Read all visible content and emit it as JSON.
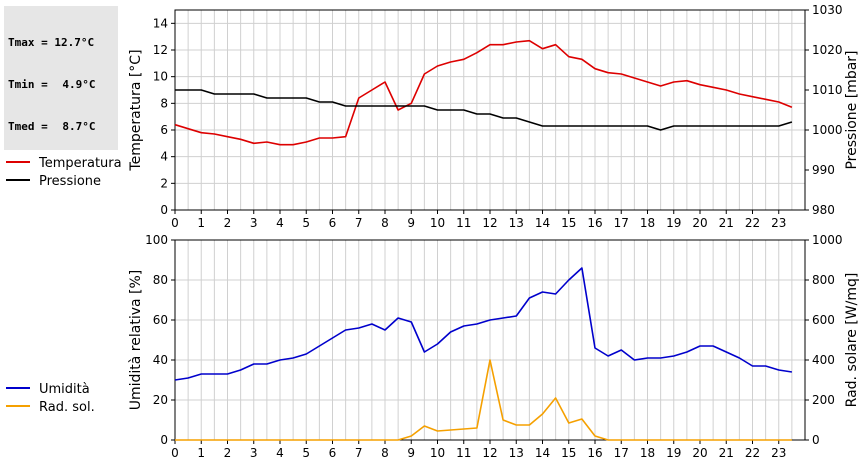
{
  "stats": [
    {
      "label": "Tmax =",
      "value": "12.7°C"
    },
    {
      "label": "Tmin =",
      "value": "4.9°C"
    },
    {
      "label": "Tmed =",
      "value": "8.7°C"
    }
  ],
  "colors": {
    "temperature": "#dd0000",
    "pressure": "#000000",
    "humidity": "#0000cc",
    "solar": "#f5a000",
    "grid": "#d0d0d0"
  },
  "chart_data": [
    {
      "type": "line",
      "x_ticks": [
        "0",
        "1",
        "2",
        "3",
        "4",
        "5",
        "6",
        "7",
        "8",
        "9",
        "10",
        "11",
        "12",
        "13",
        "14",
        "15",
        "16",
        "17",
        "18",
        "19",
        "20",
        "21",
        "22",
        "23"
      ],
      "xlim": [
        0,
        24
      ],
      "ylabel": "Temperatura [°C]",
      "ylim": [
        0,
        15
      ],
      "y_ticks": [
        "0",
        "2",
        "4",
        "6",
        "8",
        "10",
        "12",
        "14"
      ],
      "ylabel_right": "Pressione [mbar]",
      "ylim_right": [
        980,
        1030
      ],
      "y_ticks_right": [
        "980",
        "990",
        "1000",
        "1010",
        "1020",
        "1030"
      ],
      "grid": true,
      "legend_position": "left",
      "series": [
        {
          "name": "Temperatura",
          "axis": "left",
          "color": "#dd0000",
          "x": [
            0,
            0.5,
            1,
            1.5,
            2,
            2.5,
            3,
            3.5,
            4,
            4.5,
            5,
            5.5,
            6,
            6.5,
            7,
            7.5,
            8,
            8.5,
            9,
            9.5,
            10,
            10.5,
            11,
            11.5,
            12,
            12.5,
            13,
            13.5,
            14,
            14.5,
            15,
            15.5,
            16,
            16.5,
            17,
            17.5,
            18,
            18.5,
            19,
            19.5,
            20,
            20.5,
            21,
            21.5,
            22,
            22.5,
            23,
            23.5
          ],
          "y": [
            6.4,
            6.1,
            5.8,
            5.7,
            5.5,
            5.3,
            5.0,
            5.1,
            4.9,
            4.9,
            5.1,
            5.4,
            5.4,
            5.5,
            8.4,
            9.0,
            9.6,
            7.5,
            8.0,
            10.2,
            10.8,
            11.1,
            11.3,
            11.8,
            12.4,
            12.4,
            12.6,
            12.7,
            12.1,
            12.4,
            11.5,
            11.3,
            10.6,
            10.3,
            10.2,
            9.9,
            9.6,
            9.3,
            9.6,
            9.7,
            9.4,
            9.2,
            9.0,
            8.7,
            8.5,
            8.3,
            8.1,
            7.7
          ]
        },
        {
          "name": "Pressione",
          "axis": "right",
          "color": "#000000",
          "x": [
            0,
            1,
            1.5,
            2,
            3,
            3.5,
            4,
            5,
            5.5,
            6,
            6.5,
            7,
            8,
            9,
            9.5,
            10,
            11,
            11.5,
            12,
            12.5,
            13,
            13.5,
            14,
            15,
            16,
            17,
            18,
            18.5,
            19,
            20,
            21,
            22,
            23,
            23.5
          ],
          "y": [
            1010,
            1010,
            1009,
            1009,
            1009,
            1008,
            1008,
            1008,
            1007,
            1007,
            1006,
            1006,
            1006,
            1006,
            1006,
            1005,
            1005,
            1004,
            1004,
            1003,
            1003,
            1002,
            1001,
            1001,
            1001,
            1001,
            1001,
            1000,
            1001,
            1001,
            1001,
            1001,
            1001,
            1002
          ]
        }
      ]
    },
    {
      "type": "line",
      "x_ticks": [
        "0",
        "1",
        "2",
        "3",
        "4",
        "5",
        "6",
        "7",
        "8",
        "9",
        "10",
        "11",
        "12",
        "13",
        "14",
        "15",
        "16",
        "17",
        "18",
        "19",
        "20",
        "21",
        "22",
        "23"
      ],
      "xlim": [
        0,
        24
      ],
      "ylabel": "Umidità relativa [%]",
      "ylim": [
        0,
        100
      ],
      "y_ticks": [
        "0",
        "20",
        "40",
        "60",
        "80",
        "100"
      ],
      "ylabel_right": "Rad. solare [W/mq]",
      "ylim_right": [
        0,
        1000
      ],
      "y_ticks_right": [
        "0",
        "200",
        "400",
        "600",
        "800",
        "1000"
      ],
      "grid": true,
      "legend_position": "left",
      "series": [
        {
          "name": "Umidità",
          "axis": "left",
          "color": "#0000cc",
          "x": [
            0,
            0.5,
            1,
            1.5,
            2,
            2.5,
            3,
            3.5,
            4,
            4.5,
            5,
            5.5,
            6,
            6.5,
            7,
            7.5,
            8,
            8.5,
            9,
            9.5,
            10,
            10.5,
            11,
            11.5,
            12,
            12.5,
            13,
            13.5,
            14,
            14.5,
            15,
            15.5,
            16,
            16.5,
            17,
            17.5,
            18,
            18.5,
            19,
            19.5,
            20,
            20.5,
            21,
            21.5,
            22,
            22.5,
            23,
            23.5
          ],
          "y": [
            30,
            31,
            33,
            33,
            33,
            35,
            38,
            38,
            40,
            41,
            43,
            47,
            51,
            55,
            56,
            58,
            55,
            61,
            59,
            44,
            48,
            54,
            57,
            58,
            60,
            61,
            62,
            71,
            74,
            73,
            80,
            86,
            46,
            42,
            45,
            40,
            41,
            41,
            42,
            44,
            47,
            47,
            44,
            41,
            37,
            37,
            35,
            34
          ]
        },
        {
          "name": "Rad. sol.",
          "axis": "right",
          "color": "#f5a000",
          "x": [
            0,
            0.5,
            1,
            1.5,
            2,
            2.5,
            3,
            3.5,
            4,
            4.5,
            5,
            5.5,
            6,
            6.5,
            7,
            7.5,
            8,
            8.5,
            9,
            9.5,
            10,
            10.5,
            11,
            11.5,
            12,
            12.5,
            13,
            13.5,
            14,
            14.5,
            15,
            15.5,
            16,
            16.5,
            17,
            17.5,
            18,
            18.5,
            19,
            19.5,
            20,
            20.5,
            21,
            21.5,
            22,
            22.5,
            23,
            23.5
          ],
          "y": [
            0,
            0,
            0,
            0,
            0,
            0,
            0,
            0,
            0,
            0,
            0,
            0,
            0,
            0,
            0,
            0,
            0,
            0,
            20,
            70,
            45,
            50,
            55,
            60,
            400,
            100,
            75,
            75,
            130,
            210,
            85,
            105,
            20,
            0,
            0,
            0,
            0,
            0,
            0,
            0,
            0,
            0,
            0,
            0,
            0,
            0,
            0,
            0
          ]
        }
      ]
    }
  ]
}
